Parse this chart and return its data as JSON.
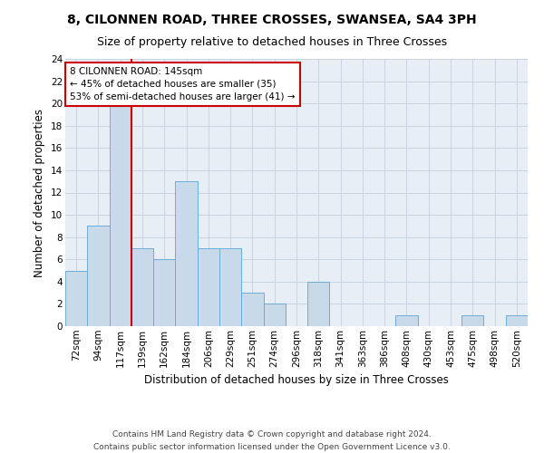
{
  "title": "8, CILONNEN ROAD, THREE CROSSES, SWANSEA, SA4 3PH",
  "subtitle": "Size of property relative to detached houses in Three Crosses",
  "xlabel": "Distribution of detached houses by size in Three Crosses",
  "ylabel": "Number of detached properties",
  "footer_line1": "Contains HM Land Registry data © Crown copyright and database right 2024.",
  "footer_line2": "Contains public sector information licensed under the Open Government Licence v3.0.",
  "bar_labels": [
    "72sqm",
    "94sqm",
    "117sqm",
    "139sqm",
    "162sqm",
    "184sqm",
    "206sqm",
    "229sqm",
    "251sqm",
    "274sqm",
    "296sqm",
    "318sqm",
    "341sqm",
    "363sqm",
    "386sqm",
    "408sqm",
    "430sqm",
    "453sqm",
    "475sqm",
    "498sqm",
    "520sqm"
  ],
  "bar_values": [
    5,
    9,
    20,
    7,
    6,
    13,
    7,
    7,
    3,
    2,
    0,
    4,
    0,
    0,
    0,
    1,
    0,
    0,
    1,
    0,
    1
  ],
  "bar_color": "#c8d9ea",
  "bar_edgecolor": "#6aaed6",
  "vline_x_index": 2.5,
  "annotation_box_text": "8 CILONNEN ROAD: 145sqm\n← 45% of detached houses are smaller (35)\n53% of semi-detached houses are larger (41) →",
  "annotation_box_edgecolor": "#cc0000",
  "vline_color": "#cc0000",
  "ylim": [
    0,
    24
  ],
  "yticks": [
    0,
    2,
    4,
    6,
    8,
    10,
    12,
    14,
    16,
    18,
    20,
    22,
    24
  ],
  "grid_color": "#c8d4e0",
  "bg_color": "#e8eef5",
  "title_fontsize": 10,
  "subtitle_fontsize": 9,
  "xlabel_fontsize": 8.5,
  "ylabel_fontsize": 8.5,
  "tick_fontsize": 7.5,
  "annotation_fontsize": 7.5,
  "footer_fontsize": 6.5
}
